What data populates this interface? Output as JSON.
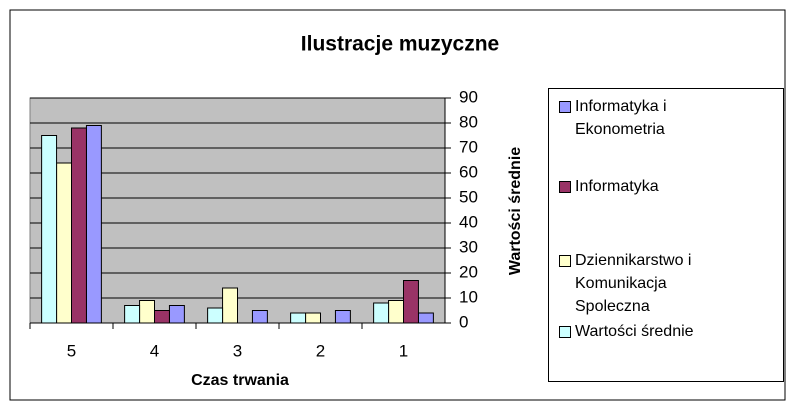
{
  "chart_data": {
    "type": "bar",
    "title": "Ilustracje muzyczne",
    "x_label": "Czas trwania",
    "y_label": "Wartości średnie",
    "categories": [
      "5",
      "4",
      "3",
      "2",
      "1"
    ],
    "series": [
      {
        "name": "Informatyka i Ekonometria",
        "color": "#9999ff",
        "values": [
          79,
          7,
          5,
          5,
          4
        ]
      },
      {
        "name": "Informatyka",
        "color": "#993366",
        "values": [
          78,
          5,
          0,
          0,
          17
        ]
      },
      {
        "name": "Dziennikarstwo i Komunikacja Spoleczna",
        "color": "#ffffcc",
        "values": [
          64,
          9,
          14,
          4,
          9
        ]
      },
      {
        "name": "Wartości średnie",
        "color": "#ccffff",
        "values": [
          75,
          7,
          6,
          4,
          8
        ]
      }
    ],
    "ylim": [
      0,
      90
    ],
    "yticks": [
      0,
      10,
      20,
      30,
      40,
      50,
      60,
      70,
      80,
      90
    ],
    "grid": true,
    "legend": "right",
    "plot_background": "#c0c0c0"
  }
}
